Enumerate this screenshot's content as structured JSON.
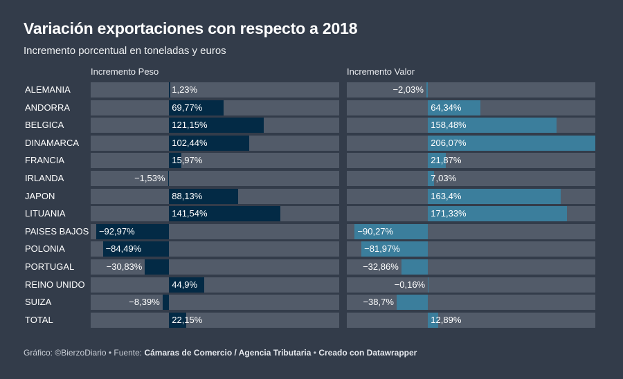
{
  "title": "Variación exportaciones con respecto a 2018",
  "subtitle": "Incremento porcentual en toneladas y euros",
  "footer": {
    "prefix": "Gráfico: ©BierzoDiario • Fuente: ",
    "source": "Cámaras de Comercio / Agencia Tributaria",
    "sep": " • ",
    "credit": "Creado con Datawrapper"
  },
  "colors": {
    "background": "#333c4a",
    "track": "#525b69",
    "peso": "#032a45",
    "valor": "#3b7e9c"
  },
  "chart_data": {
    "type": "bar",
    "orientation": "horizontal",
    "categories": [
      "ALEMANIA",
      "ANDORRA",
      "BELGICA",
      "DINAMARCA",
      "FRANCIA",
      "IRLANDA",
      "JAPON",
      "LITUANIA",
      "PAISES BAJOS",
      "POLONIA",
      "PORTUGAL",
      "REINO UNIDO",
      "SUIZA",
      "TOTAL"
    ],
    "series": [
      {
        "name": "Incremento Peso",
        "values": [
          1.23,
          69.77,
          121.15,
          102.44,
          15.97,
          -1.53,
          88.13,
          141.54,
          -92.97,
          -84.49,
          -30.83,
          44.9,
          -8.39,
          22.15
        ],
        "labels": [
          "1,23%",
          "69,77%",
          "121,15%",
          "102,44%",
          "15,97%",
          "−1,53%",
          "88,13%",
          "141,54%",
          "−92,97%",
          "−84,49%",
          "−30,83%",
          "44,9%",
          "−8,39%",
          "22,15%"
        ],
        "range": [
          -100,
          217
        ]
      },
      {
        "name": "Incremento Valor",
        "values": [
          -2.03,
          64.34,
          158.48,
          206.07,
          21.87,
          7.03,
          163.4,
          171.33,
          -90.27,
          -81.97,
          -32.86,
          -0.16,
          -38.7,
          12.89
        ],
        "labels": [
          "−2,03%",
          "64,34%",
          "158,48%",
          "206,07%",
          "21,87%",
          "7,03%",
          "163,4%",
          "171,33%",
          "−90,27%",
          "−81,97%",
          "−32,86%",
          "−0,16%",
          "−38,7%",
          "12,89%"
        ],
        "range": [
          -100,
          206.07
        ]
      }
    ]
  }
}
